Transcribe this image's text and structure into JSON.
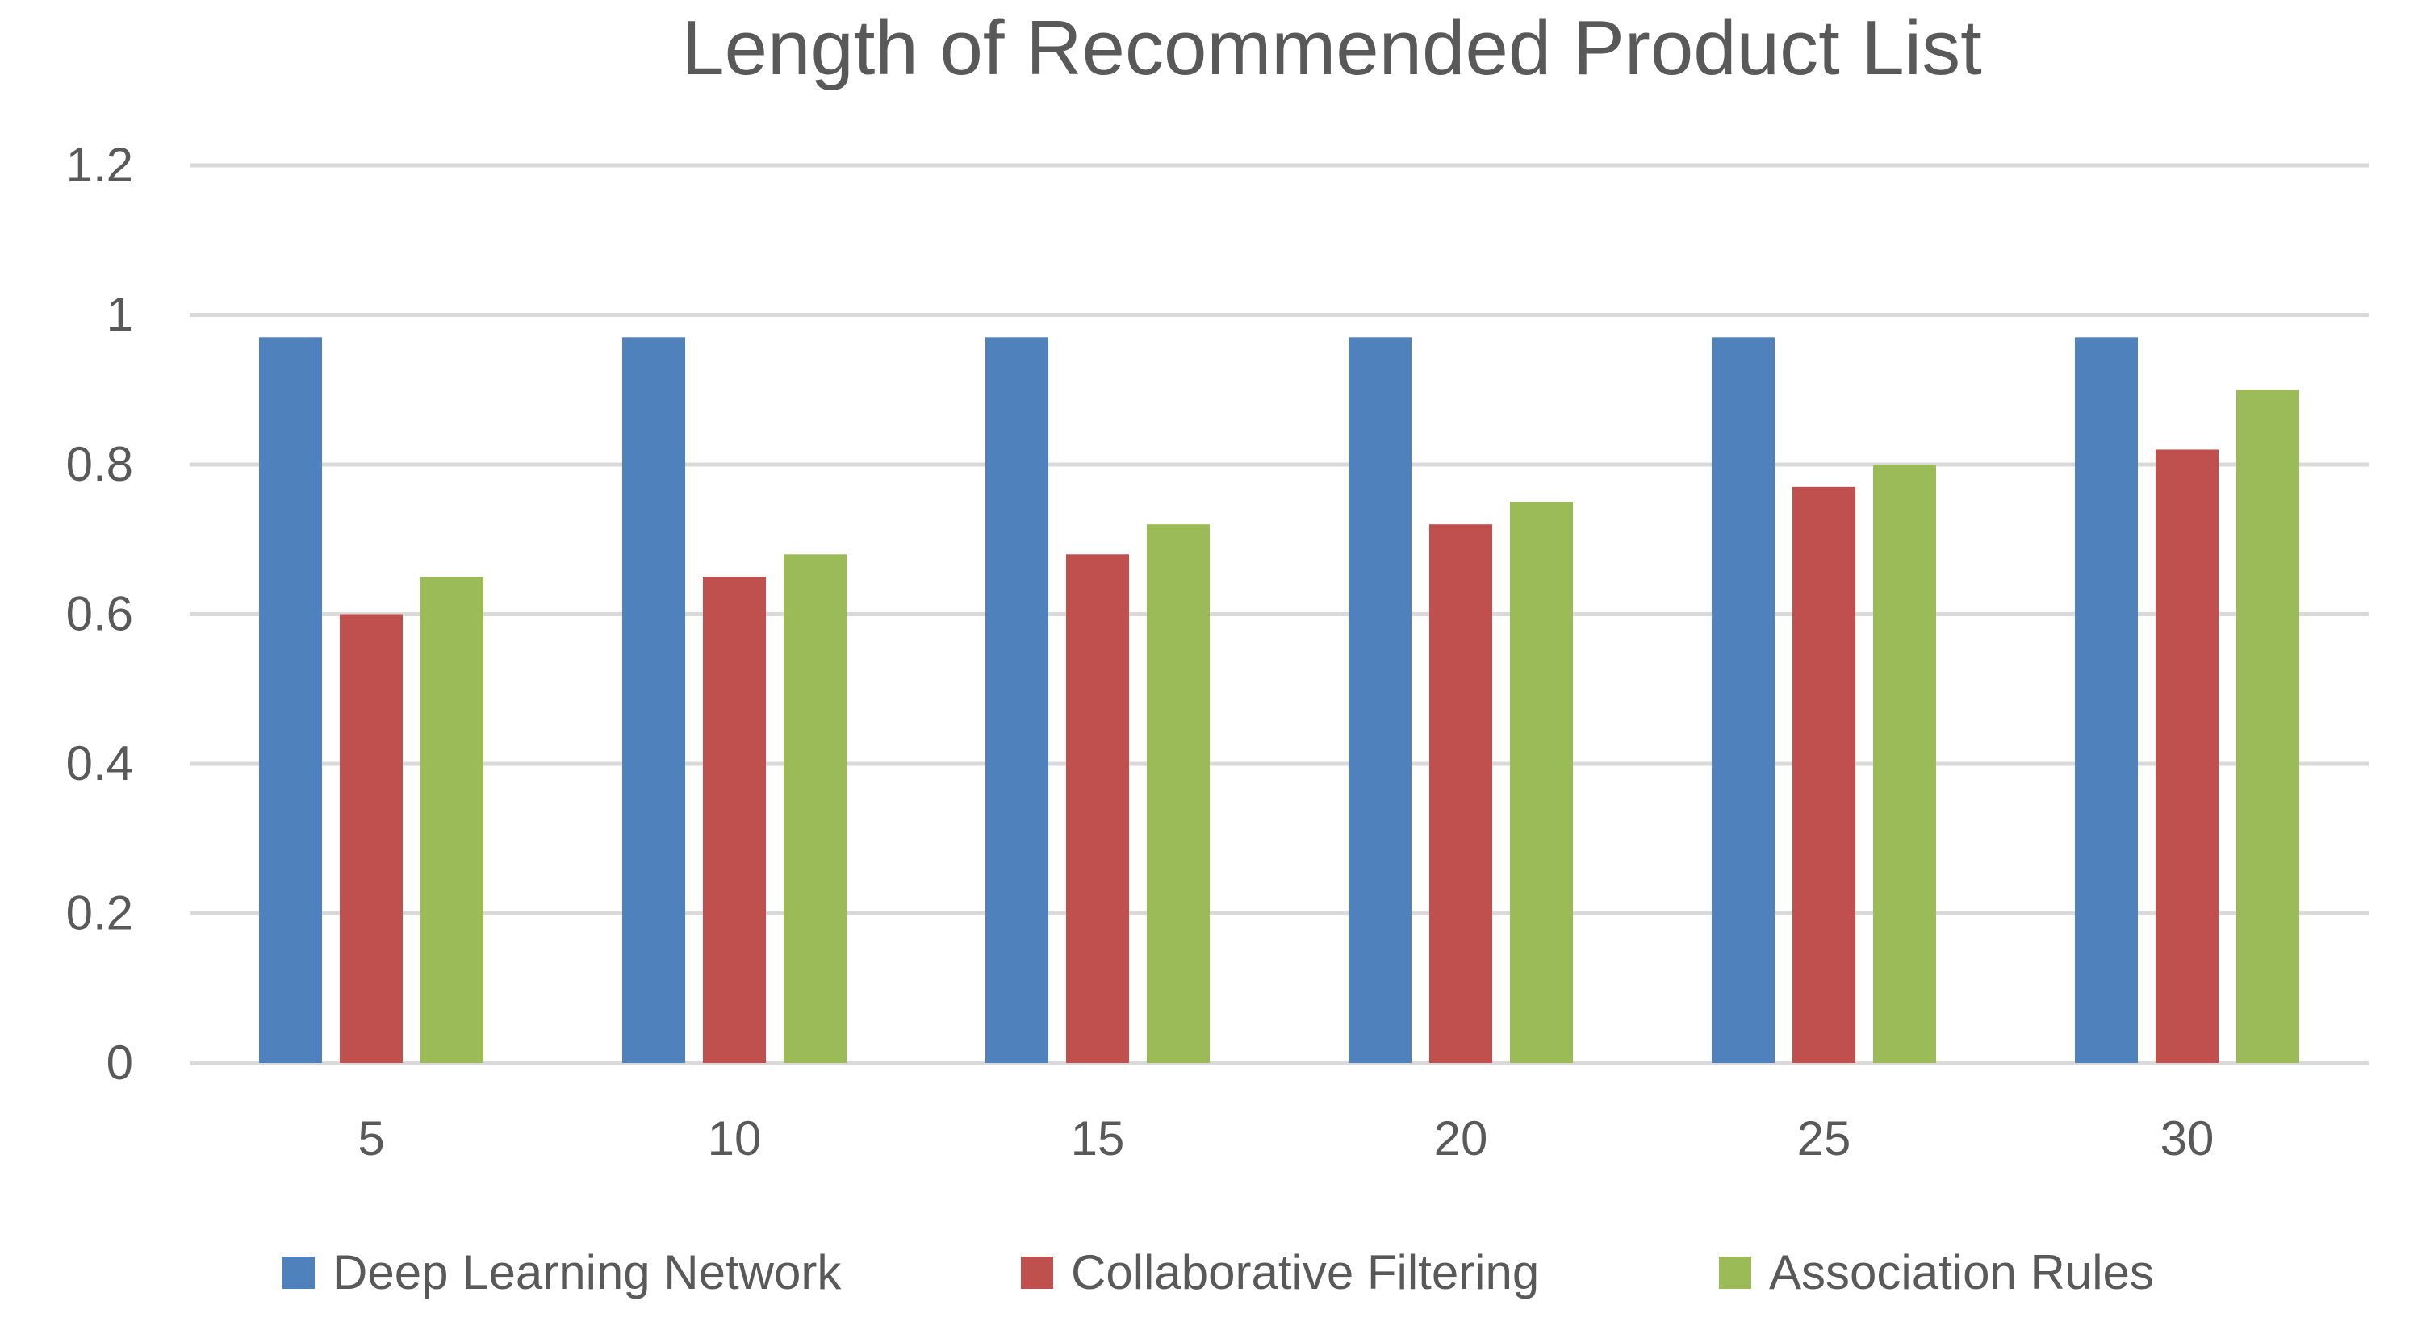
{
  "chart_data": {
    "type": "bar",
    "title": "Length of Recommended Product List",
    "xlabel": "",
    "ylabel": "",
    "categories": [
      "5",
      "10",
      "15",
      "20",
      "25",
      "30"
    ],
    "series": [
      {
        "name": "Deep Learning Network",
        "color": "#4F81BD",
        "values": [
          0.97,
          0.97,
          0.97,
          0.97,
          0.97,
          0.97
        ]
      },
      {
        "name": "Collaborative Filtering",
        "color": "#C0504D",
        "values": [
          0.6,
          0.65,
          0.68,
          0.72,
          0.77,
          0.82
        ]
      },
      {
        "name": "Association Rules",
        "color": "#9BBB59",
        "values": [
          0.65,
          0.68,
          0.72,
          0.75,
          0.8,
          0.9
        ]
      }
    ],
    "ylim": [
      0,
      1.2
    ],
    "yticks": [
      "0",
      "0.2",
      "0.4",
      "0.6",
      "0.8",
      "1",
      "1.2"
    ],
    "grid": true,
    "legend_position": "bottom"
  }
}
